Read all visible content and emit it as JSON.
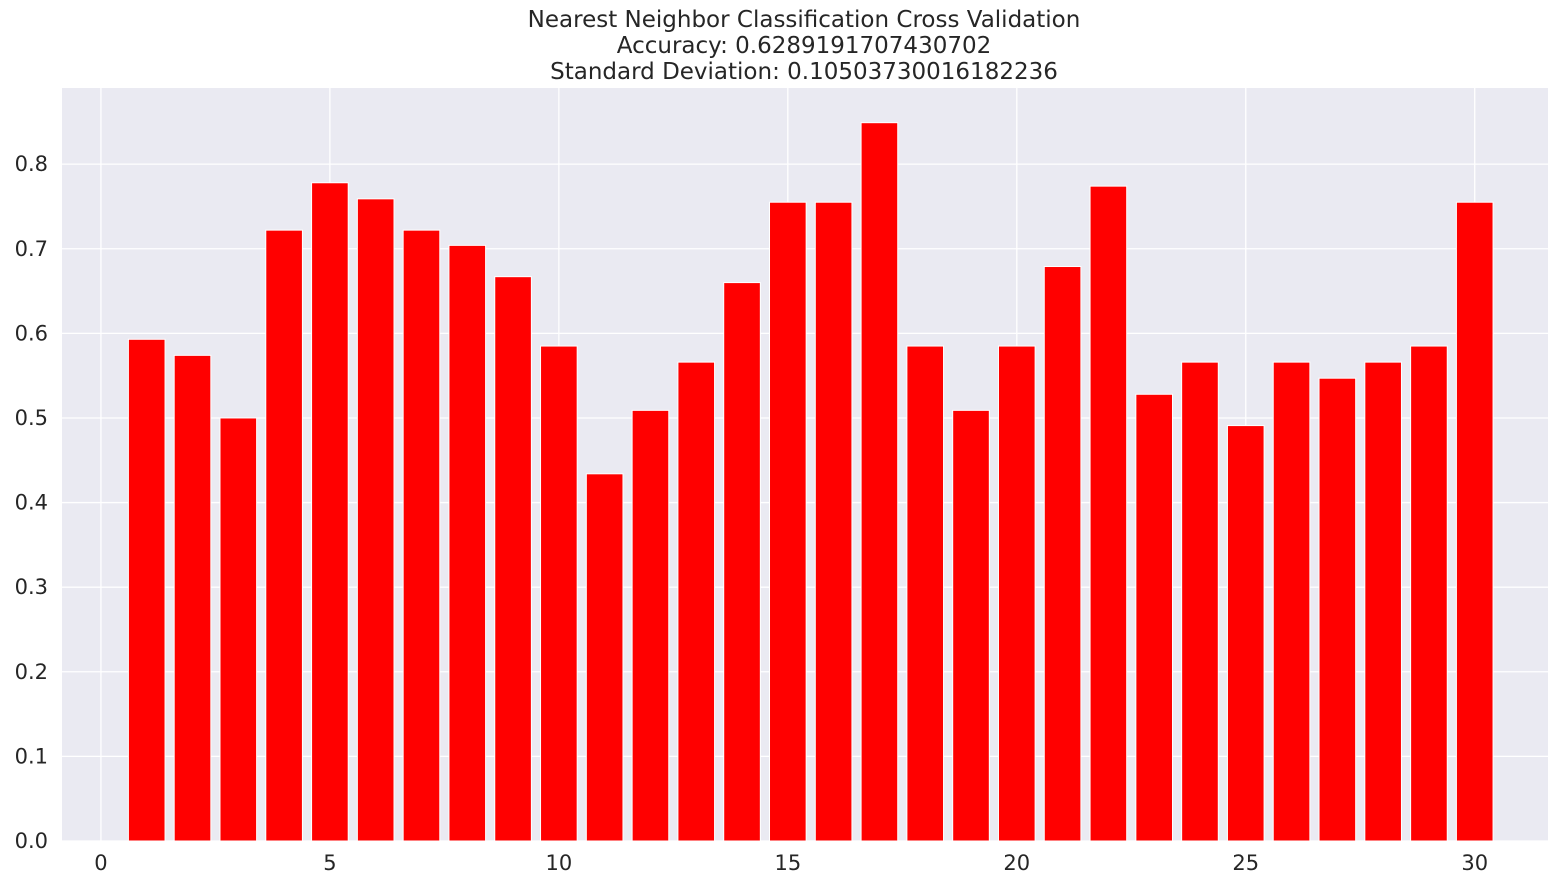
{
  "chart_data": {
    "type": "bar",
    "title_lines": [
      "Nearest Neighbor Classification Cross Validation",
      "Accuracy: 0.6289191707430702",
      "Standard Deviation: 0.10503730016182236"
    ],
    "x": [
      1,
      2,
      3,
      4,
      5,
      6,
      7,
      8,
      9,
      10,
      11,
      12,
      13,
      14,
      15,
      16,
      17,
      18,
      19,
      20,
      21,
      22,
      23,
      24,
      25,
      26,
      27,
      28,
      29,
      30
    ],
    "values": [
      0.593,
      0.574,
      0.5,
      0.722,
      0.778,
      0.759,
      0.722,
      0.704,
      0.667,
      0.585,
      0.434,
      0.509,
      0.566,
      0.66,
      0.755,
      0.755,
      0.849,
      0.585,
      0.509,
      0.585,
      0.679,
      0.774,
      0.528,
      0.566,
      0.491,
      0.566,
      0.547,
      0.566,
      0.585,
      0.755
    ],
    "xlim": [
      -0.85,
      31.6
    ],
    "ylim": [
      0.0,
      0.89
    ],
    "xticks": [
      "0",
      "5",
      "10",
      "15",
      "20",
      "25",
      "30"
    ],
    "yticks": [
      "0.0",
      "0.1",
      "0.2",
      "0.3",
      "0.4",
      "0.5",
      "0.6",
      "0.7",
      "0.8"
    ],
    "xlabel": "",
    "ylabel": "",
    "grid": true,
    "bar_color": "#ff0000",
    "background_color": "#eaeaf2",
    "grid_color": "#ffffff"
  }
}
